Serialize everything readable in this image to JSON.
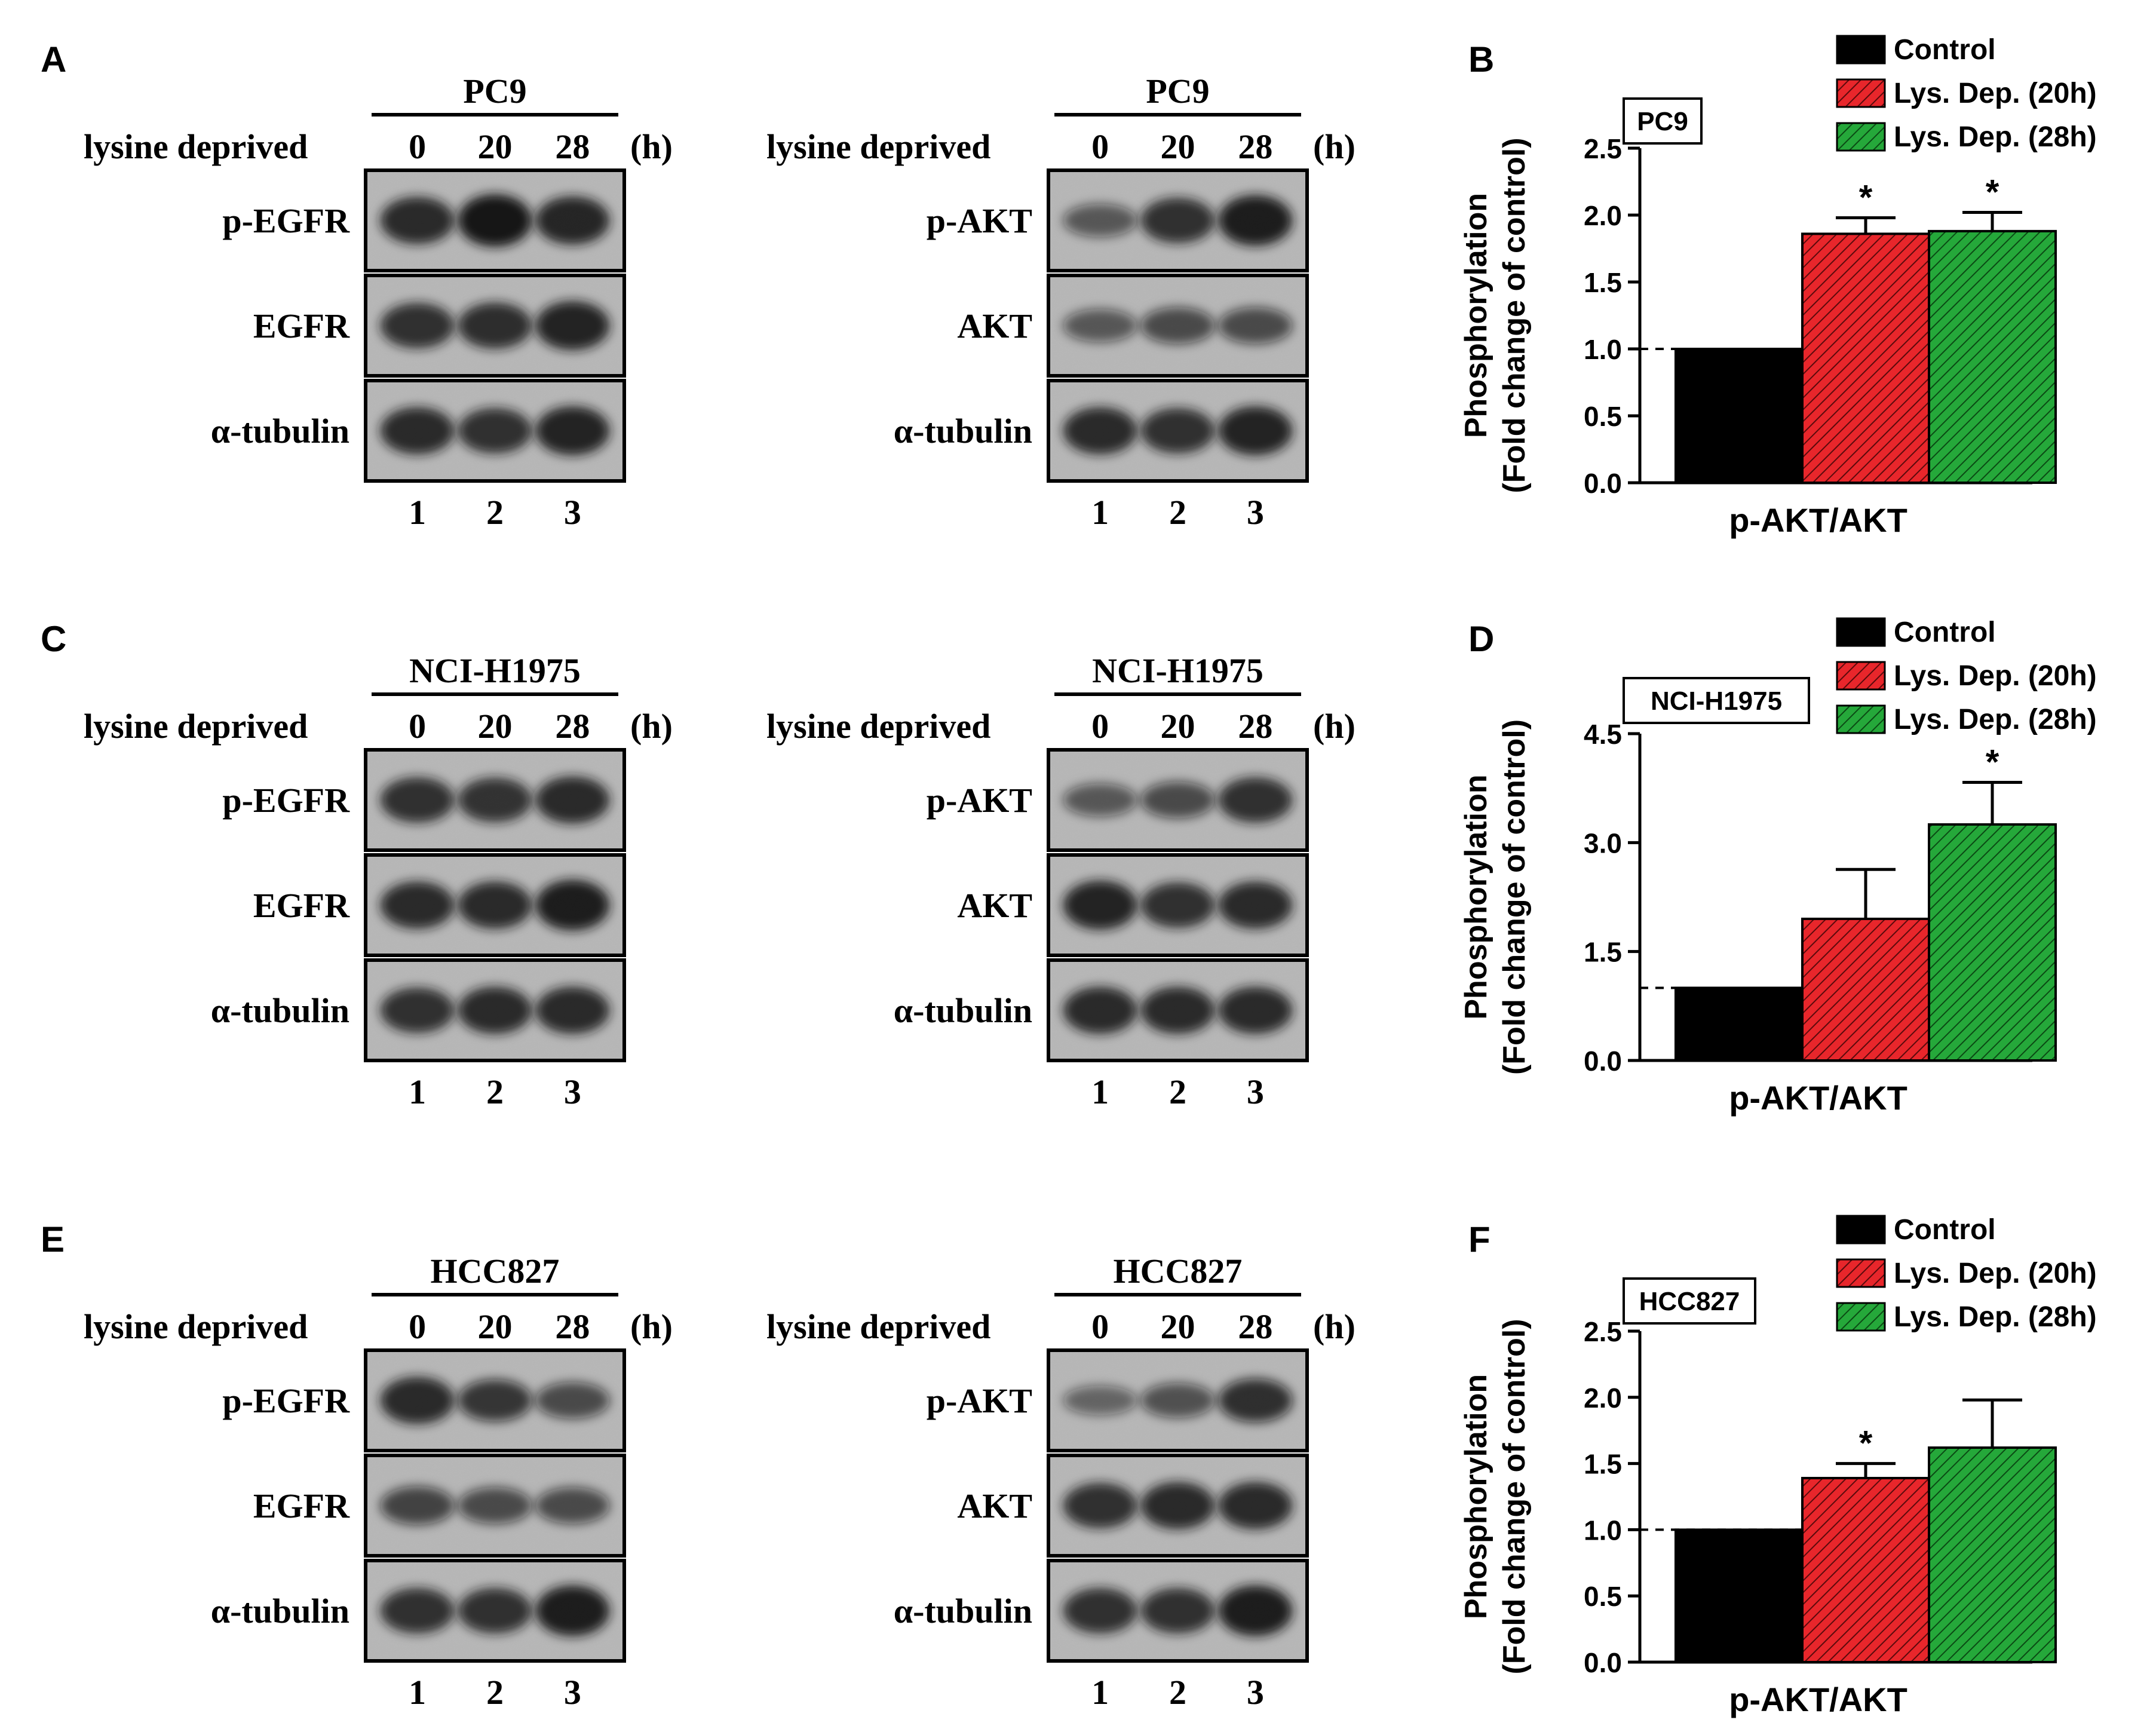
{
  "colors": {
    "control": "#000000",
    "lys20": "#e8262b",
    "lys28": "#25a83a",
    "blot_bg": "#b6b6b6",
    "band": "#141414"
  },
  "panels": [
    {
      "letter": "A",
      "row": 0,
      "blots": [
        {
          "name": "pc9-egfr-blot",
          "cell_line": "PC9",
          "row_label": "lysine deprived",
          "times": [
            "0",
            "20",
            "28"
          ],
          "unit": "(h)",
          "lanes": [
            "1",
            "2",
            "3"
          ],
          "proteins": [
            {
              "label": "p-EGFR",
              "intensity": [
                0.85,
                1.0,
                0.88
              ]
            },
            {
              "label": "EGFR",
              "intensity": [
                0.8,
                0.82,
                0.9
              ]
            },
            {
              "label": "α-tubulin",
              "intensity": [
                0.85,
                0.8,
                0.9
              ]
            }
          ]
        },
        {
          "name": "pc9-akt-blot",
          "cell_line": "PC9",
          "row_label": "lysine deprived",
          "times": [
            "0",
            "20",
            "28"
          ],
          "unit": "(h)",
          "lanes": [
            "1",
            "2",
            "3"
          ],
          "proteins": [
            {
              "label": "p-AKT",
              "intensity": [
                0.45,
                0.8,
                0.95
              ]
            },
            {
              "label": "AKT",
              "intensity": [
                0.45,
                0.55,
                0.55
              ]
            },
            {
              "label": "α-tubulin",
              "intensity": [
                0.85,
                0.8,
                0.9
              ]
            }
          ]
        }
      ]
    },
    {
      "letter": "C",
      "row": 1,
      "blots": [
        {
          "name": "h1975-egfr-blot",
          "cell_line": "NCI-H1975",
          "row_label": "lysine deprived",
          "times": [
            "0",
            "20",
            "28"
          ],
          "unit": "(h)",
          "lanes": [
            "1",
            "2",
            "3"
          ],
          "proteins": [
            {
              "label": "p-EGFR",
              "intensity": [
                0.8,
                0.78,
                0.85
              ]
            },
            {
              "label": "EGFR",
              "intensity": [
                0.85,
                0.85,
                0.95
              ]
            },
            {
              "label": "α-tubulin",
              "intensity": [
                0.8,
                0.85,
                0.85
              ]
            }
          ]
        },
        {
          "name": "h1975-akt-blot",
          "cell_line": "NCI-H1975",
          "row_label": "lysine deprived",
          "times": [
            "0",
            "20",
            "28"
          ],
          "unit": "(h)",
          "lanes": [
            "1",
            "2",
            "3"
          ],
          "proteins": [
            {
              "label": "p-AKT",
              "intensity": [
                0.45,
                0.55,
                0.8
              ]
            },
            {
              "label": "AKT",
              "intensity": [
                0.9,
                0.8,
                0.85
              ]
            },
            {
              "label": "α-tubulin",
              "intensity": [
                0.85,
                0.85,
                0.85
              ]
            }
          ]
        }
      ]
    },
    {
      "letter": "E",
      "row": 2,
      "blots": [
        {
          "name": "hcc827-egfr-blot",
          "cell_line": "HCC827",
          "row_label": "lysine deprived",
          "times": [
            "0",
            "20",
            "28"
          ],
          "unit": "(h)",
          "lanes": [
            "1",
            "2",
            "3"
          ],
          "proteins": [
            {
              "label": "p-EGFR",
              "intensity": [
                0.85,
                0.7,
                0.55
              ]
            },
            {
              "label": "EGFR",
              "intensity": [
                0.6,
                0.55,
                0.55
              ]
            },
            {
              "label": "α-tubulin",
              "intensity": [
                0.8,
                0.8,
                0.95
              ]
            }
          ]
        },
        {
          "name": "hcc827-akt-blot",
          "cell_line": "HCC827",
          "row_label": "lysine deprived",
          "times": [
            "0",
            "20",
            "28"
          ],
          "unit": "(h)",
          "lanes": [
            "1",
            "2",
            "3"
          ],
          "proteins": [
            {
              "label": "p-AKT",
              "intensity": [
                0.35,
                0.5,
                0.75
              ]
            },
            {
              "label": "AKT",
              "intensity": [
                0.8,
                0.85,
                0.85
              ]
            },
            {
              "label": "α-tubulin",
              "intensity": [
                0.8,
                0.8,
                0.95
              ]
            }
          ]
        }
      ]
    }
  ],
  "chart_data": [
    {
      "panel": "B",
      "type": "bar",
      "cell_line_box": "PC9",
      "categories": [
        "p-AKT/AKT"
      ],
      "xlabel": "p-AKT/AKT",
      "ylabel": [
        "Phosphorylation",
        "(Fold change of control)"
      ],
      "ylim": [
        0,
        2.5
      ],
      "yticks": [
        "0.0",
        "0.5",
        "1.0",
        "1.5",
        "2.0",
        "2.5"
      ],
      "reference_line": 1.0,
      "series": [
        {
          "name": "Control",
          "value": 1.0,
          "error": 0,
          "star": false
        },
        {
          "name": "Lys. Dep. (20h)",
          "value": 1.86,
          "error": 0.12,
          "star": true
        },
        {
          "name": "Lys. Dep. (28h)",
          "value": 1.88,
          "error": 0.14,
          "star": true
        }
      ],
      "significance_mark": "*"
    },
    {
      "panel": "D",
      "type": "bar",
      "cell_line_box": "NCI-H1975",
      "categories": [
        "p-AKT/AKT"
      ],
      "xlabel": "p-AKT/AKT",
      "ylabel": [
        "Phosphorylation",
        "(Fold change of control)"
      ],
      "ylim": [
        0,
        4.5
      ],
      "yticks": [
        "0.0",
        "1.5",
        "3.0",
        "4.5"
      ],
      "reference_line": 1.0,
      "series": [
        {
          "name": "Control",
          "value": 1.0,
          "error": 0,
          "star": false
        },
        {
          "name": "Lys. Dep. (20h)",
          "value": 1.95,
          "error": 0.68,
          "star": false
        },
        {
          "name": "Lys. Dep. (28h)",
          "value": 3.25,
          "error": 0.58,
          "star": true
        }
      ],
      "significance_mark": "*"
    },
    {
      "panel": "F",
      "type": "bar",
      "cell_line_box": "HCC827",
      "categories": [
        "p-AKT/AKT"
      ],
      "xlabel": "p-AKT/AKT",
      "ylabel": [
        "Phosphorylation",
        "(Fold change of control)"
      ],
      "ylim": [
        0,
        2.5
      ],
      "yticks": [
        "0.0",
        "0.5",
        "1.0",
        "1.5",
        "2.0",
        "2.5"
      ],
      "reference_line": 1.0,
      "series": [
        {
          "name": "Control",
          "value": 1.0,
          "error": 0,
          "star": false
        },
        {
          "name": "Lys. Dep. (20h)",
          "value": 1.39,
          "error": 0.11,
          "star": true
        },
        {
          "name": "Lys. Dep. (28h)",
          "value": 1.62,
          "error": 0.36,
          "star": false
        }
      ],
      "significance_mark": "*"
    }
  ]
}
